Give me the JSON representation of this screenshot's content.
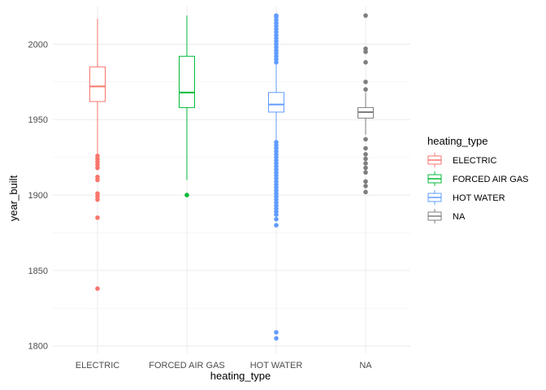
{
  "chart_data": {
    "type": "boxplot",
    "xlabel": "heating_type",
    "ylabel": "year_built",
    "ylim": [
      1795,
      2025
    ],
    "yticks": [
      1800,
      1850,
      1900,
      1950,
      2000
    ],
    "grid": true,
    "legend": {
      "title": "heating_type",
      "position": "right"
    },
    "categories": [
      "ELECTRIC",
      "FORCED AIR GAS",
      "HOT WATER",
      "NA"
    ],
    "series": [
      {
        "name": "ELECTRIC",
        "color": "#F8766D",
        "whisker_low": 1927,
        "q1": 1962,
        "median": 1972,
        "q3": 1985,
        "whisker_high": 2017,
        "outliers": [
          1926,
          1924,
          1922,
          1920,
          1918,
          1912,
          1910,
          1901,
          1899,
          1897,
          1885,
          1838
        ]
      },
      {
        "name": "FORCED AIR GAS",
        "color": "#00BA38",
        "whisker_low": 1910,
        "q1": 1958,
        "median": 1968,
        "q3": 1992,
        "whisker_high": 2019,
        "outliers": [
          1900
        ]
      },
      {
        "name": "HOT WATER",
        "color": "#619CFF",
        "whisker_low": 1936,
        "q1": 1955,
        "median": 1960,
        "q3": 1968,
        "whisker_high": 1987,
        "outliers": [
          2019,
          2018,
          2016,
          2014,
          2012,
          2010,
          2008,
          2006,
          2004,
          2002,
          2000,
          1998,
          1996,
          1994,
          1992,
          1990,
          1988,
          1935,
          1933,
          1931,
          1929,
          1927,
          1925,
          1923,
          1921,
          1919,
          1917,
          1915,
          1913,
          1911,
          1909,
          1907,
          1905,
          1903,
          1901,
          1899,
          1897,
          1895,
          1893,
          1891,
          1889,
          1887,
          1884,
          1880,
          1809,
          1805
        ]
      },
      {
        "name": "NA",
        "color": "#7F7F7F",
        "whisker_low": 1940,
        "q1": 1951,
        "median": 1955,
        "q3": 1958,
        "whisker_high": 1968,
        "outliers": [
          2019,
          1997,
          1995,
          1988,
          1975,
          1970,
          1937,
          1931,
          1927,
          1924,
          1921,
          1918,
          1915,
          1909,
          1906,
          1902
        ]
      }
    ]
  }
}
